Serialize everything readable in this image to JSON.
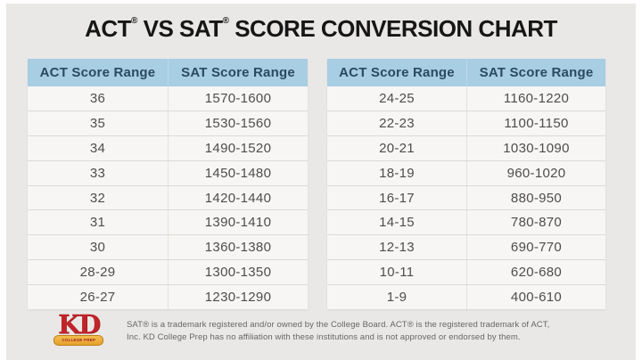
{
  "title": {
    "part1": "ACT",
    "reg": "®",
    "part2": " VS SAT",
    "part3": " SCORE CONVERSION CHART"
  },
  "tables": {
    "left": {
      "headers": {
        "act": "ACT Score Range",
        "sat": "SAT Score Range"
      },
      "rows": [
        {
          "act": "36",
          "sat": "1570-1600"
        },
        {
          "act": "35",
          "sat": "1530-1560"
        },
        {
          "act": "34",
          "sat": "1490-1520"
        },
        {
          "act": "33",
          "sat": "1450-1480"
        },
        {
          "act": "32",
          "sat": "1420-1440"
        },
        {
          "act": "31",
          "sat": "1390-1410"
        },
        {
          "act": "30",
          "sat": "1360-1380"
        },
        {
          "act": "28-29",
          "sat": "1300-1350"
        },
        {
          "act": "26-27",
          "sat": "1230-1290"
        }
      ]
    },
    "right": {
      "headers": {
        "act": "ACT Score Range",
        "sat": "SAT Score Range"
      },
      "rows": [
        {
          "act": "24-25",
          "sat": "1160-1220"
        },
        {
          "act": "22-23",
          "sat": "1100-1150"
        },
        {
          "act": "20-21",
          "sat": "1030-1090"
        },
        {
          "act": "18-19",
          "sat": "960-1020"
        },
        {
          "act": "16-17",
          "sat": "880-950"
        },
        {
          "act": "14-15",
          "sat": "780-870"
        },
        {
          "act": "12-13",
          "sat": "690-770"
        },
        {
          "act": "10-11",
          "sat": "620-680"
        },
        {
          "act": "1-9",
          "sat": "400-610"
        }
      ]
    }
  },
  "footer": {
    "logo": {
      "text": "KD",
      "banner": "COLLEGE PREP"
    },
    "disclaimer_line1": "SAT® is a trademark registered and/or owned by the College Board. ACT® is the registered trademark of ACT,",
    "disclaimer_line2": "Inc. KD College Prep has no affiliation with these institutions and is not approved or endorsed by them."
  },
  "colors": {
    "card_background": "#e9e8e6",
    "table_header_background": "#a7cee3",
    "table_header_text": "#2b4a61",
    "table_body_background": "#f7f6f4",
    "table_body_text": "#4d4d4d",
    "title_text": "#161616",
    "logo_red": "#c0242a",
    "logo_gold": "#e8a53a",
    "disclaimer_text": "#666665"
  },
  "chart_data": {
    "type": "table",
    "title": "ACT® VS SAT® SCORE CONVERSION CHART",
    "columns": [
      "ACT Score Range",
      "SAT Score Range"
    ],
    "rows": [
      [
        "36",
        "1570-1600"
      ],
      [
        "35",
        "1530-1560"
      ],
      [
        "34",
        "1490-1520"
      ],
      [
        "33",
        "1450-1480"
      ],
      [
        "32",
        "1420-1440"
      ],
      [
        "31",
        "1390-1410"
      ],
      [
        "30",
        "1360-1380"
      ],
      [
        "28-29",
        "1300-1350"
      ],
      [
        "26-27",
        "1230-1290"
      ],
      [
        "24-25",
        "1160-1220"
      ],
      [
        "22-23",
        "1100-1150"
      ],
      [
        "20-21",
        "1030-1090"
      ],
      [
        "18-19",
        "960-1020"
      ],
      [
        "16-17",
        "880-950"
      ],
      [
        "14-15",
        "780-870"
      ],
      [
        "12-13",
        "690-770"
      ],
      [
        "10-11",
        "620-680"
      ],
      [
        "1-9",
        "400-610"
      ]
    ]
  }
}
